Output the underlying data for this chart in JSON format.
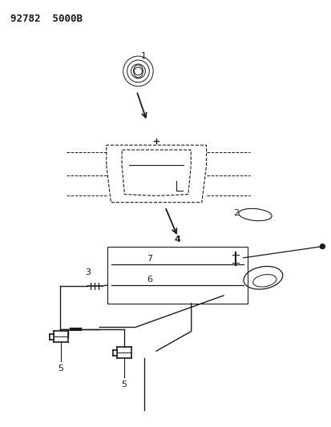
{
  "title": "92782  5000B",
  "bg_color": "#ffffff",
  "line_color": "#1a1a1a",
  "figsize": [
    4.14,
    5.33
  ],
  "dpi": 100
}
